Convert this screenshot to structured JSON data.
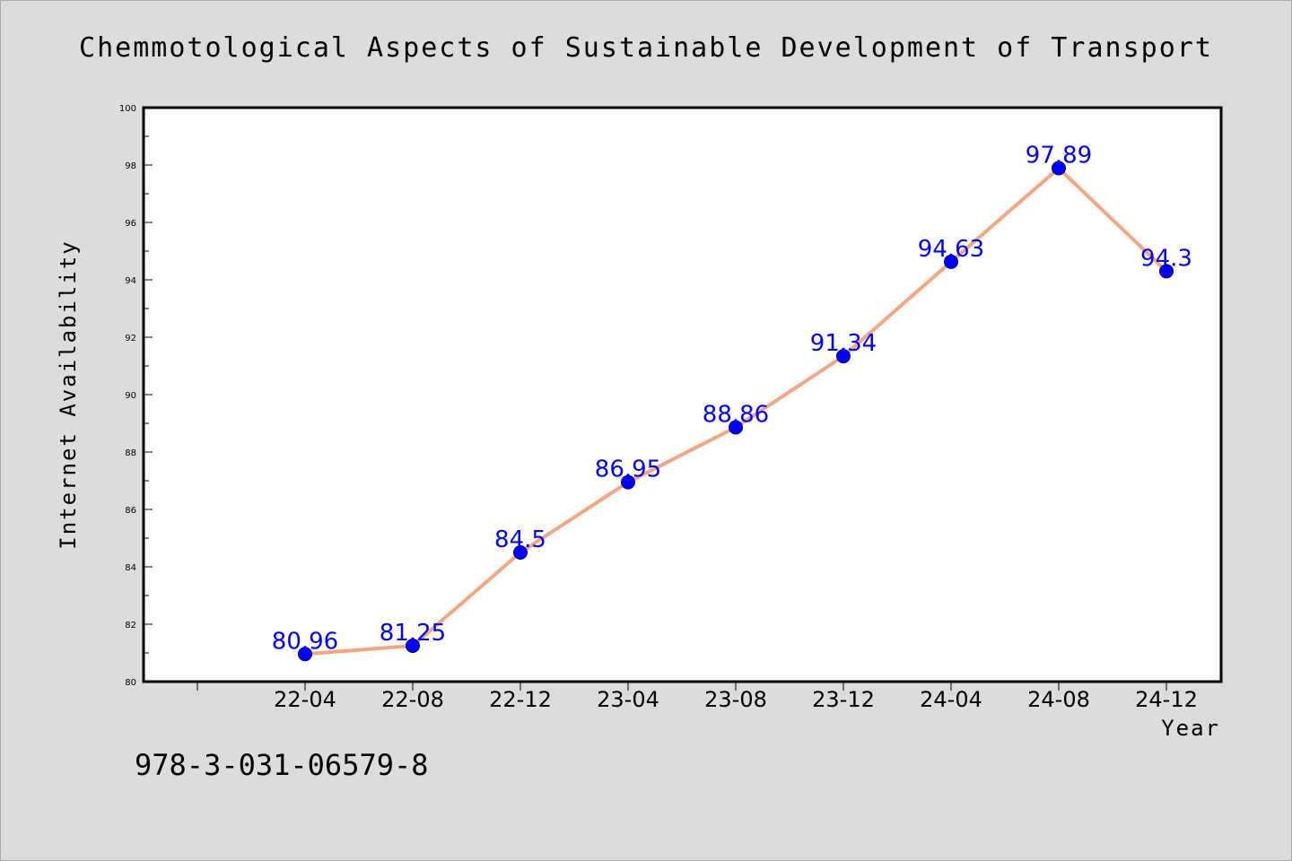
{
  "chart_data": {
    "type": "line",
    "title": "Chemmotological Aspects of Sustainable Development of Transport",
    "xlabel": "Year",
    "ylabel": "Internet Availability",
    "categories": [
      "22-04",
      "22-08",
      "22-12",
      "23-04",
      "23-08",
      "23-12",
      "24-04",
      "24-08",
      "24-12"
    ],
    "series": [
      {
        "values": [
          80.96,
          81.25,
          84.5,
          86.95,
          88.86,
          91.34,
          94.63,
          97.89,
          94.3
        ]
      }
    ],
    "value_labels": [
      "80.96",
      "81.25",
      "84.5",
      "86.95",
      "88.86",
      "91.34",
      "94.63",
      "97.89",
      "94.3"
    ],
    "ylim": [
      80,
      100
    ],
    "yticks": [
      "80",
      "82",
      "84",
      "86",
      "88",
      "90",
      "92",
      "94",
      "96",
      "98",
      "100"
    ],
    "grid": false,
    "legend": "none",
    "colors": {
      "background": "#dcdcdc",
      "plot_background": "#ffffff",
      "line": "#f4a582",
      "marker": "#0000ff",
      "data_label": "#0000ff"
    }
  },
  "footer": {
    "isbn": "978-3-031-06579-8"
  }
}
